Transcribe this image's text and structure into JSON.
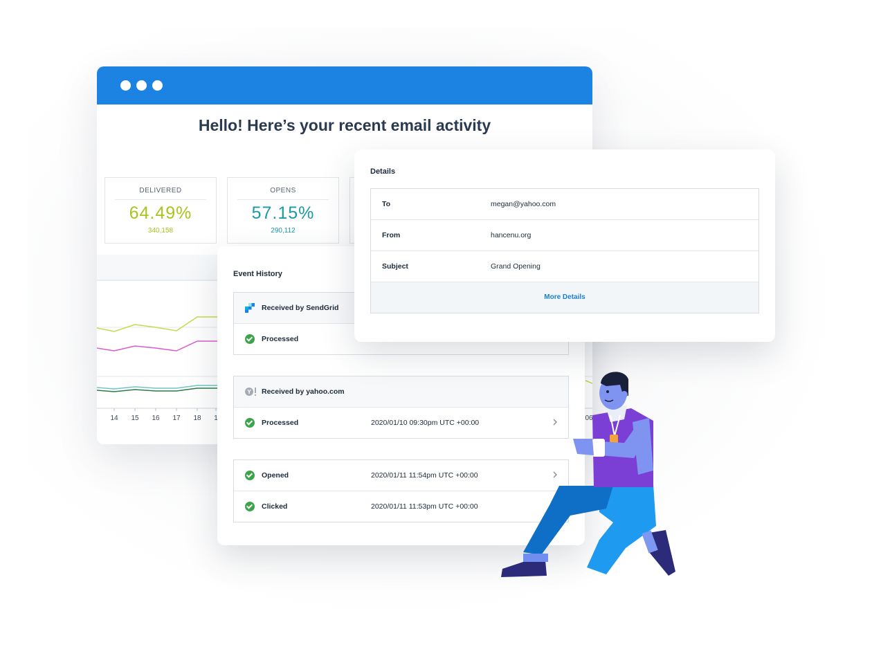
{
  "dashboard": {
    "title": "Hello! Here’s your recent email activity",
    "stats": [
      {
        "label": "DELIVERED",
        "percent": "64.49%",
        "count": "340,158",
        "color": "#a9c41e"
      },
      {
        "label": "OPENS",
        "percent": "57.15%",
        "count": "290,112",
        "color": "#1a9aa6"
      }
    ],
    "chart": {
      "x_ticks": [
        "14",
        "15",
        "16",
        "17",
        "18",
        "1"
      ],
      "right_tick": "06"
    }
  },
  "event_history": {
    "heading": "Event History",
    "groups": [
      {
        "header": {
          "icon": "sendgrid-logo-icon",
          "label": "Received by SendGrid"
        },
        "events": [
          {
            "status": "Processed",
            "time": "",
            "chevron": false
          }
        ]
      },
      {
        "header": {
          "icon": "yahoo-logo-icon",
          "label": "Received by yahoo.com"
        },
        "events": [
          {
            "status": "Processed",
            "time": "2020/01/10 09:30pm UTC +00:00",
            "chevron": true
          }
        ]
      },
      {
        "header": null,
        "events": [
          {
            "status": "Opened",
            "time": "2020/01/11 11:54pm UTC +00:00",
            "chevron": true
          },
          {
            "status": "Clicked",
            "time": "2020/01/11 11:53pm UTC +00:00",
            "chevron": false
          }
        ]
      }
    ]
  },
  "details": {
    "heading": "Details",
    "rows": [
      {
        "key": "To",
        "value": "megan@yahoo.com"
      },
      {
        "key": "From",
        "value": "hancenu.org"
      },
      {
        "key": "Subject",
        "value": "Grand Opening"
      }
    ],
    "more_label": "More Details"
  },
  "colors": {
    "accent": "#1c83e3",
    "success": "#3ea44c",
    "link": "#1a7fd6"
  }
}
